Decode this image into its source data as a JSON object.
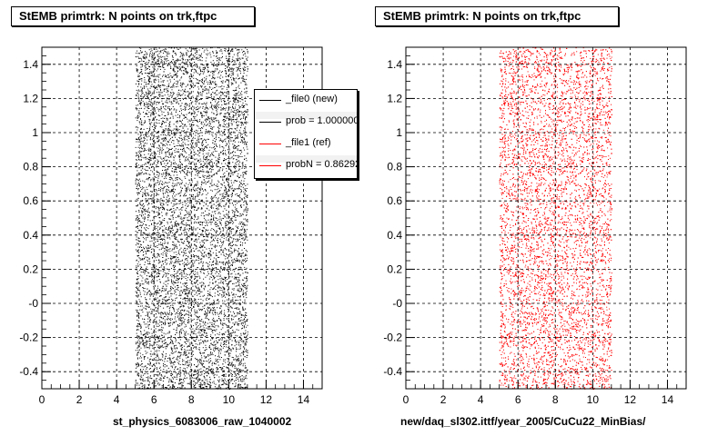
{
  "chart_data": [
    {
      "type": "scatter",
      "title": "StEMB primtrk: N points on trk,ftpc",
      "xlabel": "st_physics_6083006_raw_1040002",
      "ylabel": "",
      "xlim": [
        0,
        15
      ],
      "ylim": [
        -0.5,
        1.5
      ],
      "xticks": [
        "0",
        "2",
        "4",
        "6",
        "8",
        "10",
        "12",
        "14"
      ],
      "yticks": [
        "-0.4",
        "-0.2",
        "-0",
        "0.2",
        "0.4",
        "0.6",
        "0.8",
        "1",
        "1.2",
        "1.4"
      ],
      "grid": true,
      "series": [
        {
          "color": "#000000",
          "x_range": [
            5,
            11
          ],
          "y_range": [
            -0.5,
            1.5
          ]
        }
      ],
      "legend": {
        "placement": "top-right",
        "entries": [
          {
            "label": "_file0 (new)",
            "color": "#000000"
          },
          {
            "label": "prob = 1.000000",
            "color": "#000000"
          },
          {
            "label": "_file1 (ref)",
            "color": "#ff0000"
          },
          {
            "label": "probN = 0.862926",
            "color": "#ff0000"
          }
        ]
      }
    },
    {
      "type": "scatter",
      "title": "StEMB primtrk: N points on trk,ftpc",
      "xlabel": "new/daq_sl302.ittf/year_2005/CuCu22_MinBias/",
      "ylabel": "",
      "xlim": [
        0,
        15
      ],
      "ylim": [
        -0.5,
        1.5
      ],
      "xticks": [
        "0",
        "2",
        "4",
        "6",
        "8",
        "10",
        "12",
        "14"
      ],
      "yticks": [
        "-0.4",
        "-0.2",
        "-0",
        "0.2",
        "0.4",
        "0.6",
        "0.8",
        "1",
        "1.2",
        "1.4"
      ],
      "grid": true,
      "series": [
        {
          "color": "#ff0000",
          "x_range": [
            5,
            11
          ],
          "y_range": [
            -0.5,
            1.5
          ]
        }
      ]
    }
  ]
}
